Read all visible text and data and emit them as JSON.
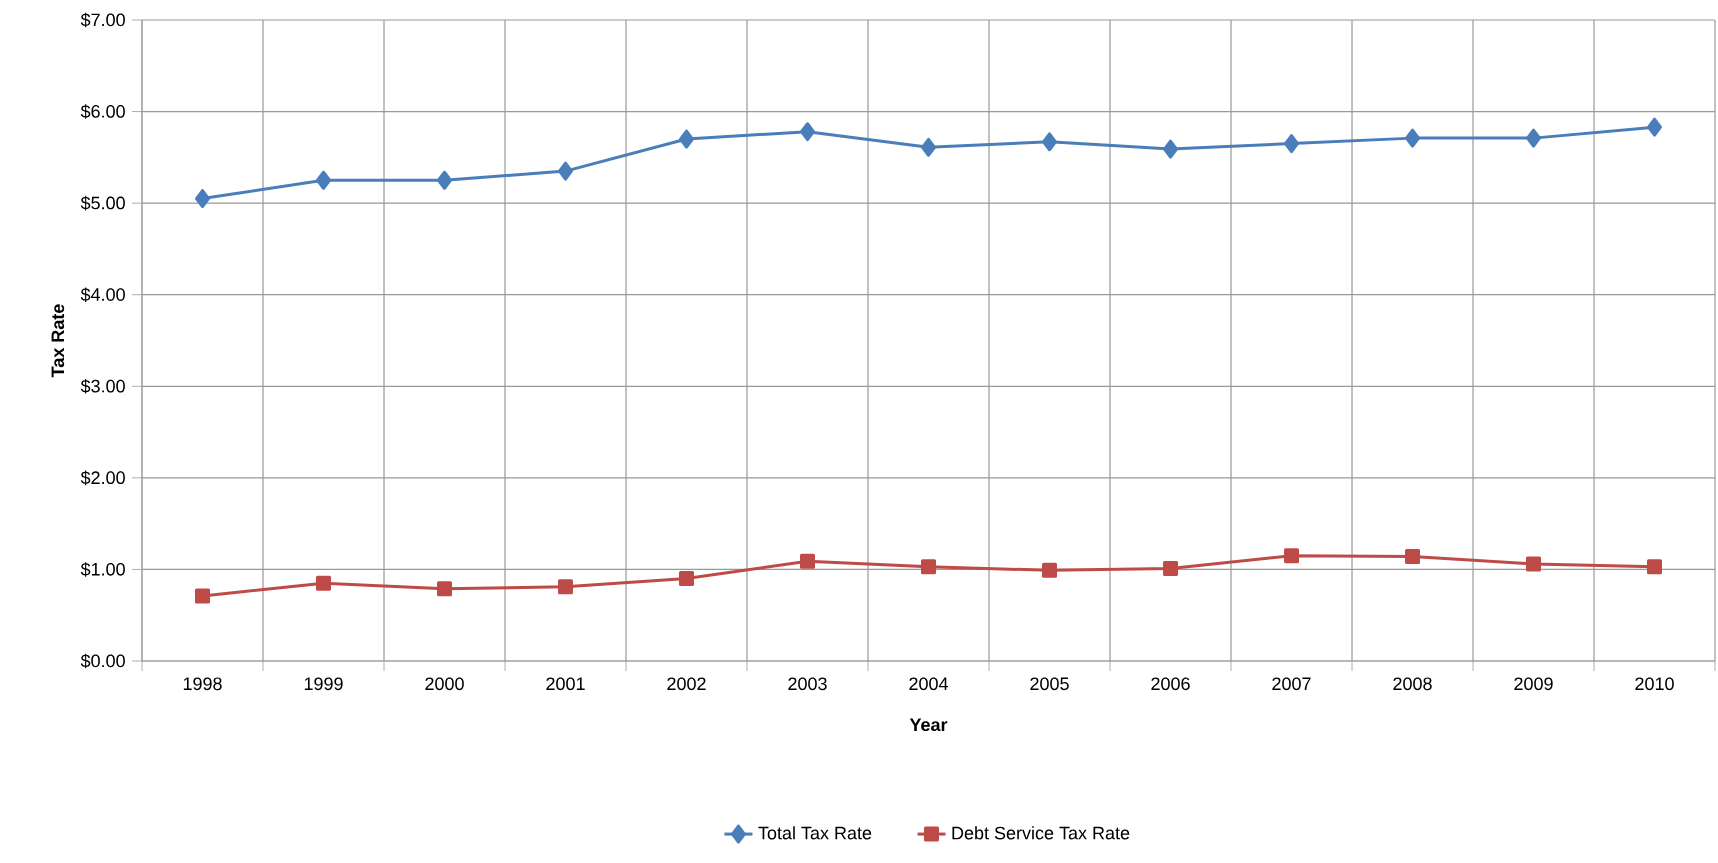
{
  "chart_data": {
    "type": "line",
    "xlabel": "Year",
    "ylabel": "Tax Rate",
    "categories": [
      "1998",
      "1999",
      "2000",
      "2001",
      "2002",
      "2003",
      "2004",
      "2005",
      "2006",
      "2007",
      "2008",
      "2009",
      "2010"
    ],
    "series": [
      {
        "name": "Total Tax Rate",
        "color": "#4a7ebb",
        "marker": "diamond",
        "values": [
          5.05,
          5.25,
          5.25,
          5.35,
          5.7,
          5.78,
          5.61,
          5.67,
          5.59,
          5.65,
          5.71,
          5.71,
          5.83
        ]
      },
      {
        "name": "Debt Service Tax Rate",
        "color": "#be4b48",
        "marker": "square",
        "values": [
          0.71,
          0.85,
          0.79,
          0.81,
          0.9,
          1.09,
          1.03,
          0.99,
          1.01,
          1.15,
          1.14,
          1.06,
          1.03
        ]
      }
    ],
    "ylim": [
      0,
      7
    ],
    "yticks": [
      {
        "value": 0,
        "label": "$0.00"
      },
      {
        "value": 1,
        "label": "$1.00"
      },
      {
        "value": 2,
        "label": "$2.00"
      },
      {
        "value": 3,
        "label": "$3.00"
      },
      {
        "value": 4,
        "label": "$4.00"
      },
      {
        "value": 5,
        "label": "$5.00"
      },
      {
        "value": 6,
        "label": "$6.00"
      },
      {
        "value": 7,
        "label": "$7.00"
      }
    ],
    "grid": true,
    "legend": "bottom"
  }
}
